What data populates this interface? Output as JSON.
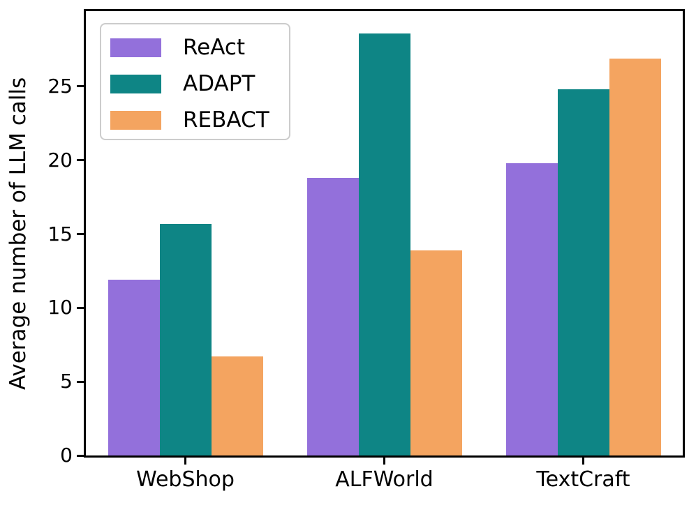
{
  "chart_data": {
    "type": "bar",
    "title": "",
    "categories": [
      "WebShop",
      "ALFWorld",
      "TextCraft"
    ],
    "series": [
      {
        "name": "ReAct",
        "color": "#9370DB",
        "values": [
          11.9,
          18.8,
          19.8
        ]
      },
      {
        "name": "ADAPT",
        "color": "#0E8585",
        "values": [
          15.7,
          28.6,
          24.8
        ]
      },
      {
        "name": "REBACT",
        "color": "#F4A460",
        "values": [
          6.7,
          13.9,
          26.9
        ]
      }
    ],
    "xlabel": "",
    "ylabel": "Average number of LLM calls",
    "ylim": [
      0,
      30.1
    ],
    "yticks": [
      0,
      5,
      10,
      15,
      20,
      25
    ],
    "grid": false,
    "legend_position": "upper-left"
  },
  "colors": {
    "axis": "#000000",
    "legend_border": "#cccccc",
    "background": "#ffffff"
  }
}
